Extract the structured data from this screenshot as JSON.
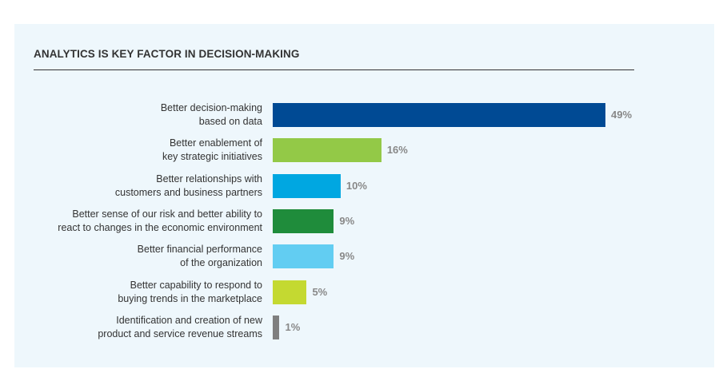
{
  "chart_data": {
    "type": "bar",
    "orientation": "horizontal",
    "title": "ANALYTICS IS KEY FACTOR IN DECISION-MAKING",
    "categories": [
      [
        "Better decision-making",
        "based on data"
      ],
      [
        "Better enablement of",
        "key strategic initiatives"
      ],
      [
        "Better relationships with",
        "customers and business partners"
      ],
      [
        "Better sense of our risk and better ability to",
        "react to changes in the economic environment"
      ],
      [
        "Better financial performance",
        "of the organization"
      ],
      [
        "Better capability to respond to",
        "buying trends in the marketplace"
      ],
      [
        "Identification and creation of new",
        "product and service revenue streams"
      ]
    ],
    "values": [
      49,
      16,
      10,
      9,
      9,
      5,
      1
    ],
    "value_labels": [
      "49%",
      "16%",
      "10%",
      "9%",
      "9%",
      "5%",
      "1%"
    ],
    "colors": [
      "#004a94",
      "#93c947",
      "#00a7e1",
      "#1f8c3b",
      "#62cdf2",
      "#c4d931",
      "#7f7f7f"
    ],
    "xlim": [
      0,
      49
    ],
    "unit": "%"
  }
}
